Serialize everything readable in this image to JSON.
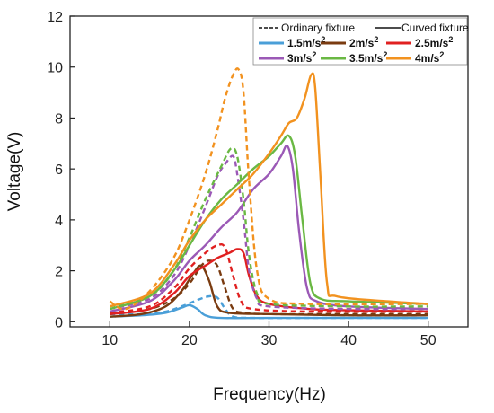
{
  "chart_data": {
    "type": "line",
    "xlabel": "Frequency(Hz)",
    "ylabel": "Voltage(V)",
    "xlim": [
      5,
      55
    ],
    "ylim": [
      -0.2,
      12
    ],
    "xticks": [
      10,
      20,
      30,
      40,
      50
    ],
    "yticks": [
      0,
      2,
      4,
      6,
      8,
      10,
      12
    ],
    "grid": false,
    "legend_position": "top-right",
    "style_legend": [
      {
        "label": "Ordinary fixture",
        "dash": "dashed"
      },
      {
        "label": "Curved fixture",
        "dash": "solid"
      }
    ],
    "series": [
      {
        "name": "1.5m/s",
        "exp": "2",
        "color": "#4a9fd8",
        "ordinary": [
          [
            10,
            0.3
          ],
          [
            14,
            0.3
          ],
          [
            17,
            0.4
          ],
          [
            19,
            0.6
          ],
          [
            21,
            0.85
          ],
          [
            22.5,
            1.0
          ],
          [
            23.5,
            0.95
          ],
          [
            24.5,
            0.5
          ],
          [
            25.5,
            0.2
          ],
          [
            28,
            0.15
          ],
          [
            35,
            0.15
          ],
          [
            40,
            0.15
          ],
          [
            50,
            0.15
          ]
        ],
        "curved": [
          [
            10,
            0.2
          ],
          [
            14,
            0.25
          ],
          [
            17,
            0.35
          ],
          [
            19,
            0.55
          ],
          [
            20,
            0.65
          ],
          [
            21,
            0.5
          ],
          [
            22,
            0.25
          ],
          [
            24,
            0.15
          ],
          [
            30,
            0.15
          ],
          [
            40,
            0.15
          ],
          [
            50,
            0.15
          ]
        ]
      },
      {
        "name": "2m/s",
        "exp": "2",
        "color": "#7a3b10",
        "ordinary": [
          [
            10,
            0.3
          ],
          [
            15,
            0.5
          ],
          [
            18,
            0.9
          ],
          [
            20,
            1.5
          ],
          [
            21.5,
            2.2
          ],
          [
            22.5,
            2.4
          ],
          [
            23.5,
            2.2
          ],
          [
            24.5,
            1.3
          ],
          [
            25.5,
            0.5
          ],
          [
            27,
            0.35
          ],
          [
            30,
            0.3
          ],
          [
            40,
            0.3
          ],
          [
            50,
            0.3
          ]
        ],
        "curved": [
          [
            10,
            0.2
          ],
          [
            14,
            0.3
          ],
          [
            17,
            0.6
          ],
          [
            19,
            1.2
          ],
          [
            20.5,
            1.9
          ],
          [
            21.5,
            2.2
          ],
          [
            22.5,
            1.6
          ],
          [
            23.5,
            0.6
          ],
          [
            25,
            0.35
          ],
          [
            30,
            0.3
          ],
          [
            40,
            0.25
          ],
          [
            50,
            0.25
          ]
        ]
      },
      {
        "name": "2.5m/s",
        "exp": "2",
        "color": "#e02020",
        "ordinary": [
          [
            10,
            0.35
          ],
          [
            15,
            0.6
          ],
          [
            18,
            1.3
          ],
          [
            20,
            2.1
          ],
          [
            22,
            2.7
          ],
          [
            23.5,
            3.0
          ],
          [
            24.5,
            2.9
          ],
          [
            25.5,
            1.8
          ],
          [
            26.5,
            0.8
          ],
          [
            28,
            0.5
          ],
          [
            35,
            0.4
          ],
          [
            50,
            0.4
          ]
        ],
        "curved": [
          [
            10,
            0.3
          ],
          [
            15,
            0.5
          ],
          [
            18,
            1.1
          ],
          [
            20,
            1.8
          ],
          [
            22,
            2.2
          ],
          [
            23.5,
            2.5
          ],
          [
            25,
            2.7
          ],
          [
            26,
            2.85
          ],
          [
            26.8,
            2.7
          ],
          [
            27.5,
            1.8
          ],
          [
            28.5,
            1.0
          ],
          [
            30,
            0.7
          ],
          [
            35,
            0.5
          ],
          [
            40,
            0.45
          ],
          [
            50,
            0.4
          ]
        ]
      },
      {
        "name": "3m/s",
        "exp": "2",
        "color": "#9b59b6",
        "ordinary": [
          [
            10,
            0.5
          ],
          [
            15,
            0.9
          ],
          [
            18,
            1.8
          ],
          [
            20,
            3.0
          ],
          [
            22,
            4.5
          ],
          [
            23.5,
            5.7
          ],
          [
            24.5,
            6.2
          ],
          [
            25.5,
            6.5
          ],
          [
            26,
            5.8
          ],
          [
            26.8,
            4.0
          ],
          [
            27.5,
            2.0
          ],
          [
            28.5,
            0.9
          ],
          [
            30,
            0.6
          ],
          [
            40,
            0.5
          ],
          [
            50,
            0.5
          ]
        ],
        "curved": [
          [
            10,
            0.4
          ],
          [
            15,
            0.8
          ],
          [
            18,
            1.6
          ],
          [
            20,
            2.4
          ],
          [
            22,
            3.0
          ],
          [
            24,
            3.7
          ],
          [
            26,
            4.3
          ],
          [
            28,
            5.2
          ],
          [
            30,
            5.8
          ],
          [
            31.5,
            6.5
          ],
          [
            32.3,
            6.9
          ],
          [
            33,
            6.0
          ],
          [
            33.8,
            3.5
          ],
          [
            34.8,
            1.3
          ],
          [
            36,
            0.8
          ],
          [
            40,
            0.6
          ],
          [
            50,
            0.5
          ]
        ]
      },
      {
        "name": "3.5m/s",
        "exp": "2",
        "color": "#6ab843",
        "ordinary": [
          [
            10,
            0.6
          ],
          [
            15,
            1.0
          ],
          [
            18,
            2.0
          ],
          [
            20,
            3.3
          ],
          [
            22,
            4.8
          ],
          [
            24,
            6.1
          ],
          [
            25.2,
            6.8
          ],
          [
            26,
            6.5
          ],
          [
            26.8,
            4.8
          ],
          [
            27.5,
            2.6
          ],
          [
            28.5,
            1.1
          ],
          [
            30,
            0.7
          ],
          [
            40,
            0.6
          ],
          [
            50,
            0.6
          ]
        ],
        "curved": [
          [
            10,
            0.5
          ],
          [
            15,
            1.0
          ],
          [
            18,
            2.0
          ],
          [
            20,
            3.0
          ],
          [
            22,
            4.0
          ],
          [
            24,
            4.8
          ],
          [
            26,
            5.4
          ],
          [
            28,
            6.0
          ],
          [
            30,
            6.5
          ],
          [
            31.5,
            7.0
          ],
          [
            32.5,
            7.3
          ],
          [
            33.3,
            6.5
          ],
          [
            34.2,
            4.0
          ],
          [
            35.2,
            1.5
          ],
          [
            36.5,
            0.9
          ],
          [
            40,
            0.8
          ],
          [
            50,
            0.7
          ]
        ]
      },
      {
        "name": "4m/s",
        "exp": "2",
        "color": "#f2921f",
        "ordinary": [
          [
            10,
            0.8
          ],
          [
            12,
            0.5
          ],
          [
            15,
            1.2
          ],
          [
            18,
            2.5
          ],
          [
            20,
            4.0
          ],
          [
            22,
            5.8
          ],
          [
            23.5,
            7.5
          ],
          [
            24.5,
            8.8
          ],
          [
            25.5,
            9.7
          ],
          [
            26.2,
            9.9
          ],
          [
            26.8,
            9.0
          ],
          [
            27.5,
            5.5
          ],
          [
            28.5,
            2.0
          ],
          [
            30,
            0.9
          ],
          [
            35,
            0.7
          ],
          [
            50,
            0.7
          ]
        ],
        "curved": [
          [
            10,
            0.6
          ],
          [
            15,
            1.1
          ],
          [
            18,
            2.2
          ],
          [
            20,
            3.2
          ],
          [
            22,
            4.0
          ],
          [
            24,
            4.6
          ],
          [
            26,
            5.2
          ],
          [
            28,
            5.8
          ],
          [
            30,
            6.6
          ],
          [
            31.5,
            7.3
          ],
          [
            32.5,
            7.8
          ],
          [
            33.5,
            8.0
          ],
          [
            34.5,
            8.8
          ],
          [
            35.3,
            9.7
          ],
          [
            35.8,
            9.2
          ],
          [
            36.5,
            5.5
          ],
          [
            37.3,
            1.5
          ],
          [
            38.5,
            1.0
          ],
          [
            45,
            0.8
          ],
          [
            50,
            0.7
          ]
        ]
      }
    ]
  }
}
